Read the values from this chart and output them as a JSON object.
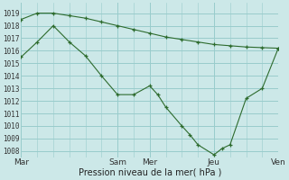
{
  "xlabel": "Pression niveau de la mer( hPa )",
  "bg_color": "#cce8e8",
  "grid_color": "#99cccc",
  "line_color": "#2d6b2d",
  "ylim": [
    1007.5,
    1019.8
  ],
  "ytick_min": 1008,
  "ytick_max": 1019,
  "xlim": [
    0,
    16
  ],
  "x_ticks": [
    0,
    6,
    8,
    12,
    16
  ],
  "x_labels": [
    "Mar",
    "Sam",
    "Mer",
    "Jeu",
    "Ven"
  ],
  "vline_x": [
    0,
    6,
    8,
    12,
    16
  ],
  "s1_x": [
    0,
    1,
    2,
    3,
    4,
    5,
    6,
    7,
    8,
    9,
    10,
    11,
    12,
    13,
    14,
    15,
    16
  ],
  "s1_y": [
    1018.5,
    1019.0,
    1019.0,
    1018.8,
    1018.6,
    1018.3,
    1018.0,
    1017.7,
    1017.4,
    1017.1,
    1016.9,
    1016.7,
    1016.5,
    1016.4,
    1016.3,
    1016.25,
    1016.2
  ],
  "s2_x": [
    0,
    1,
    2,
    3,
    4,
    5,
    6,
    7,
    8,
    8.5,
    9,
    10,
    10.5,
    11,
    12,
    12.5,
    13,
    14,
    15,
    16
  ],
  "s2_y": [
    1015.5,
    1016.7,
    1018.0,
    1016.7,
    1015.6,
    1014.0,
    1012.5,
    1012.5,
    1013.2,
    1012.5,
    1011.5,
    1010.0,
    1009.3,
    1008.5,
    1007.7,
    1008.2,
    1008.5,
    1012.2,
    1013.0,
    1016.2
  ],
  "ylabel_fontsize": 5.5,
  "xlabel_fontsize": 7.0,
  "xtick_fontsize": 6.5
}
